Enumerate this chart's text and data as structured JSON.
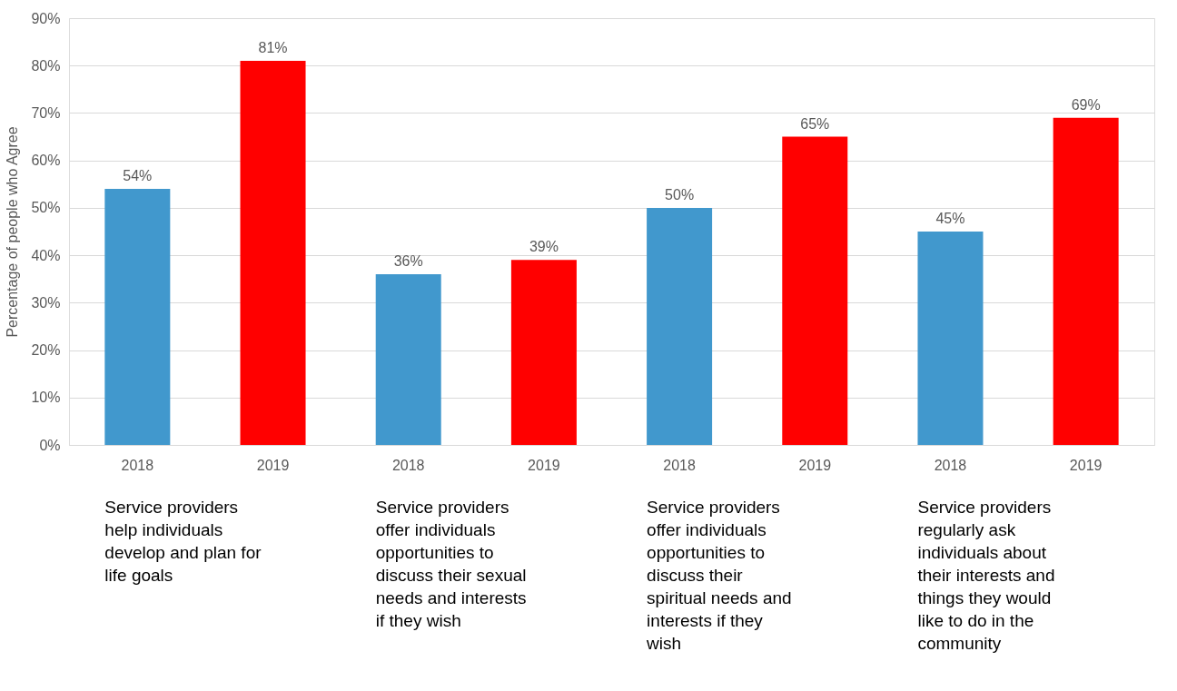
{
  "chart_data": {
    "type": "bar",
    "ylabel": "Percentage of people who Agree",
    "categories": [
      "2018",
      "2019",
      "2018",
      "2019",
      "2018",
      "2019",
      "2018",
      "2019"
    ],
    "values": [
      54,
      81,
      36,
      39,
      50,
      65,
      45,
      69
    ],
    "colors": [
      "#4198cd",
      "#ff0000",
      "#4198cd",
      "#ff0000",
      "#4198cd",
      "#ff0000",
      "#4198cd",
      "#ff0000"
    ],
    "value_labels": [
      "54%",
      "81%",
      "36%",
      "39%",
      "50%",
      "65%",
      "45%",
      "69%"
    ],
    "ylim": [
      0,
      90
    ],
    "yticks": [
      {
        "value": 0,
        "label": "0%"
      },
      {
        "value": 10,
        "label": "10%"
      },
      {
        "value": 20,
        "label": "20%"
      },
      {
        "value": 30,
        "label": "30%"
      },
      {
        "value": 40,
        "label": "40%"
      },
      {
        "value": 50,
        "label": "50%"
      },
      {
        "value": 60,
        "label": "60%"
      },
      {
        "value": 70,
        "label": "70%"
      },
      {
        "value": 80,
        "label": "80%"
      },
      {
        "value": 90,
        "label": "90%"
      }
    ],
    "grid": "y",
    "annotations": [
      "Service providers help individuals develop and plan for life goals",
      "Service providers offer individuals opportunities to discuss their sexual needs and interests if they wish",
      "Service providers offer individuals opportunities to discuss their spiritual needs and interests if they wish",
      "Service providers regularly ask individuals about their interests and things they would like to do in the community"
    ]
  }
}
